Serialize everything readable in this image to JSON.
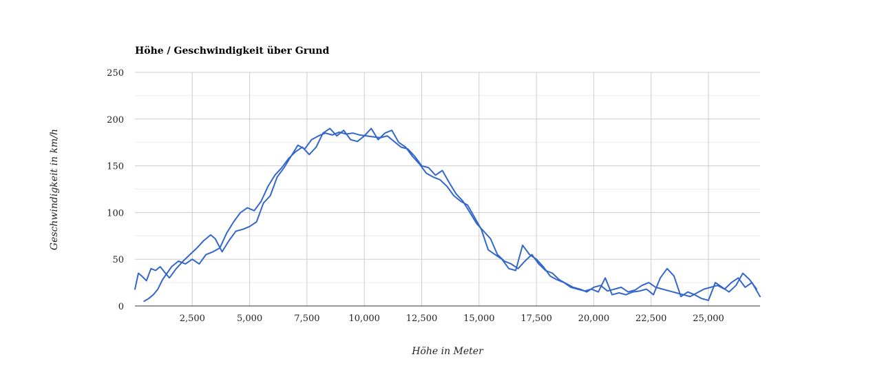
{
  "colors": {
    "series": "#3366cc",
    "grid": "#cccccc",
    "baseline": "#333333"
  },
  "chart_data": {
    "type": "line",
    "title": "Höhe / Geschwindigkeit über Grund",
    "xlabel": "Höhe in Meter",
    "ylabel": "Geschwindigkeit in km/h",
    "xlim": [
      0,
      27250
    ],
    "ylim": [
      0,
      250
    ],
    "x_ticks": [
      2500,
      5000,
      7500,
      10000,
      12500,
      15000,
      17500,
      20000,
      22500,
      25000
    ],
    "x_tick_labels": [
      "2,500",
      "5,000",
      "7,500",
      "10,000",
      "12,500",
      "15,000",
      "17,500",
      "20,000",
      "22,500",
      "25,000"
    ],
    "y_ticks": [
      0,
      50,
      100,
      150,
      200,
      250
    ],
    "y_tick_labels": [
      "0",
      "50",
      "100",
      "150",
      "200",
      "250"
    ],
    "grid": true,
    "legend": "none",
    "series": [
      {
        "x": [
          0,
          150,
          300,
          500,
          700,
          900,
          1100,
          1300,
          1500,
          1800,
          2100,
          2400,
          2700,
          3000,
          3300,
          3500,
          3800,
          4100,
          4400,
          4700,
          5000,
          5300,
          5600,
          5900,
          6200,
          6500,
          6800,
          7100,
          7400,
          7700,
          8000,
          8300,
          8600,
          8900,
          9200,
          9500,
          9800,
          10100,
          10400,
          10700,
          11000,
          11300,
          11600,
          11900,
          12200,
          12500,
          12800,
          13100,
          13400,
          13700,
          14000,
          14300,
          14600,
          14900,
          15200,
          15500,
          15800,
          16100,
          16400,
          16700,
          17000,
          17300,
          17600,
          17900,
          18200,
          18500,
          18800,
          19100,
          19400,
          19700,
          20000,
          20300,
          20600,
          20900,
          21200,
          21500,
          21800,
          22100,
          22400,
          22700,
          23000,
          23300,
          23600,
          23900,
          24200,
          24500,
          24800,
          25100,
          25400,
          25700,
          26000,
          26300,
          26600,
          26900,
          27250
        ],
        "y": [
          18,
          35,
          32,
          27,
          40,
          38,
          42,
          36,
          30,
          40,
          48,
          55,
          62,
          70,
          76,
          72,
          58,
          70,
          80,
          82,
          85,
          90,
          110,
          118,
          138,
          148,
          160,
          172,
          168,
          178,
          182,
          185,
          183,
          186,
          184,
          185,
          183,
          182,
          181,
          180,
          182,
          176,
          170,
          168,
          160,
          150,
          148,
          140,
          145,
          132,
          120,
          112,
          100,
          88,
          80,
          72,
          55,
          48,
          45,
          40,
          48,
          55,
          45,
          38,
          35,
          28,
          24,
          20,
          18,
          15,
          20,
          22,
          16,
          18,
          20,
          15,
          17,
          22,
          25,
          20,
          18,
          16,
          14,
          12,
          10,
          14,
          18,
          20,
          22,
          18,
          25,
          30,
          20,
          25,
          10
        ]
      },
      {
        "x": [
          400,
          600,
          800,
          1000,
          1200,
          1400,
          1600,
          1900,
          2200,
          2500,
          2800,
          3100,
          3400,
          3700,
          4000,
          4300,
          4600,
          4900,
          5200,
          5500,
          5800,
          6100,
          6400,
          6700,
          7000,
          7300,
          7600,
          7900,
          8200,
          8500,
          8800,
          9100,
          9400,
          9700,
          10000,
          10300,
          10600,
          10900,
          11200,
          11500,
          11800,
          12100,
          12400,
          12700,
          13000,
          13300,
          13600,
          13900,
          14200,
          14500,
          14800,
          15100,
          15400,
          15700,
          16000,
          16300,
          16600,
          16900,
          17200,
          17500,
          17800,
          18100,
          18400,
          18700,
          19000,
          19300,
          19600,
          19900,
          20200,
          20500,
          20800,
          21100,
          21400,
          21700,
          22000,
          22300,
          22600,
          22900,
          23200,
          23500,
          23800,
          24100,
          24400,
          24700,
          25000,
          25300,
          25600,
          25900,
          26200,
          26500,
          26800,
          27100
        ],
        "y": [
          5,
          8,
          12,
          18,
          28,
          35,
          42,
          48,
          45,
          50,
          45,
          55,
          58,
          62,
          78,
          90,
          100,
          105,
          102,
          112,
          128,
          140,
          148,
          158,
          165,
          170,
          162,
          170,
          185,
          190,
          182,
          188,
          178,
          176,
          182,
          190,
          178,
          185,
          188,
          175,
          170,
          160,
          152,
          142,
          138,
          135,
          128,
          118,
          112,
          108,
          95,
          82,
          60,
          55,
          50,
          40,
          38,
          65,
          55,
          50,
          42,
          32,
          28,
          25,
          20,
          18,
          16,
          18,
          15,
          30,
          12,
          14,
          12,
          15,
          16,
          18,
          12,
          30,
          40,
          32,
          10,
          15,
          12,
          8,
          6,
          25,
          20,
          15,
          22,
          35,
          28,
          18
        ]
      }
    ]
  }
}
